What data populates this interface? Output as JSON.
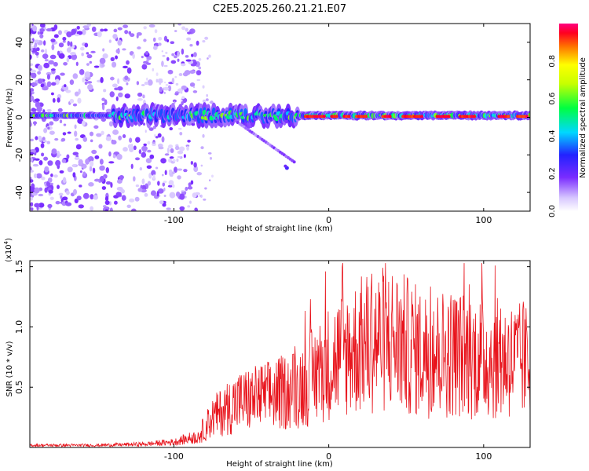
{
  "title": "C2E5.2025.260.21.21.E07",
  "chart_data": [
    {
      "type": "heatmap",
      "xlabel": "Height of straight line (km)",
      "ylabel": "Frequency (Hz)",
      "xlim": [
        -193,
        130
      ],
      "ylim": [
        -50,
        50
      ],
      "xticks": [
        {
          "value": -100,
          "label": "-100"
        },
        {
          "value": 0,
          "label": "0"
        },
        {
          "value": 100,
          "label": "100"
        }
      ],
      "yticks": [
        {
          "value": 40,
          "label": "40"
        },
        {
          "value": 20,
          "label": "20"
        },
        {
          "value": 0,
          "label": "0"
        },
        {
          "value": -20,
          "label": "-20"
        },
        {
          "value": -40,
          "label": "-40"
        }
      ],
      "colorbar": {
        "label": "Normalized spectral amplitude",
        "range": [
          0,
          1
        ],
        "ticks": [
          {
            "value": 0.0,
            "label": "0.0"
          },
          {
            "value": 0.2,
            "label": "0.2"
          },
          {
            "value": 0.4,
            "label": "0.4"
          },
          {
            "value": 0.6,
            "label": "0.6"
          },
          {
            "value": 0.8,
            "label": "0.8"
          }
        ]
      }
    },
    {
      "type": "line",
      "xlabel": "Height of straight line (km)",
      "ylabel": "SNR (10 * v/v)",
      "exponent_label": "(x10",
      "exponent_power": "4",
      "exponent_close": ")",
      "xlim": [
        -193,
        130
      ],
      "ylim": [
        0,
        1.55
      ],
      "xticks": [
        {
          "value": -100,
          "label": "-100"
        },
        {
          "value": 0,
          "label": "0"
        },
        {
          "value": 100,
          "label": "100"
        }
      ],
      "yticks": [
        {
          "value": 1.5,
          "label": "1.5"
        },
        {
          "value": 1.0,
          "label": "1.0"
        },
        {
          "value": 0.5,
          "label": "0.5"
        }
      ],
      "line_color": "#e8141c",
      "envelope": {
        "x": [
          -193,
          -150,
          -120,
          -100,
          -85,
          -75,
          -60,
          -45,
          -30,
          -20,
          -10,
          0,
          10,
          25,
          40,
          60,
          80,
          100,
          115,
          130
        ],
        "y": [
          0.02,
          0.02,
          0.03,
          0.05,
          0.1,
          0.3,
          0.45,
          0.5,
          0.55,
          0.6,
          0.72,
          0.85,
          0.95,
          1.05,
          1.1,
          0.95,
          0.95,
          0.9,
          0.88,
          0.85
        ]
      }
    }
  ]
}
